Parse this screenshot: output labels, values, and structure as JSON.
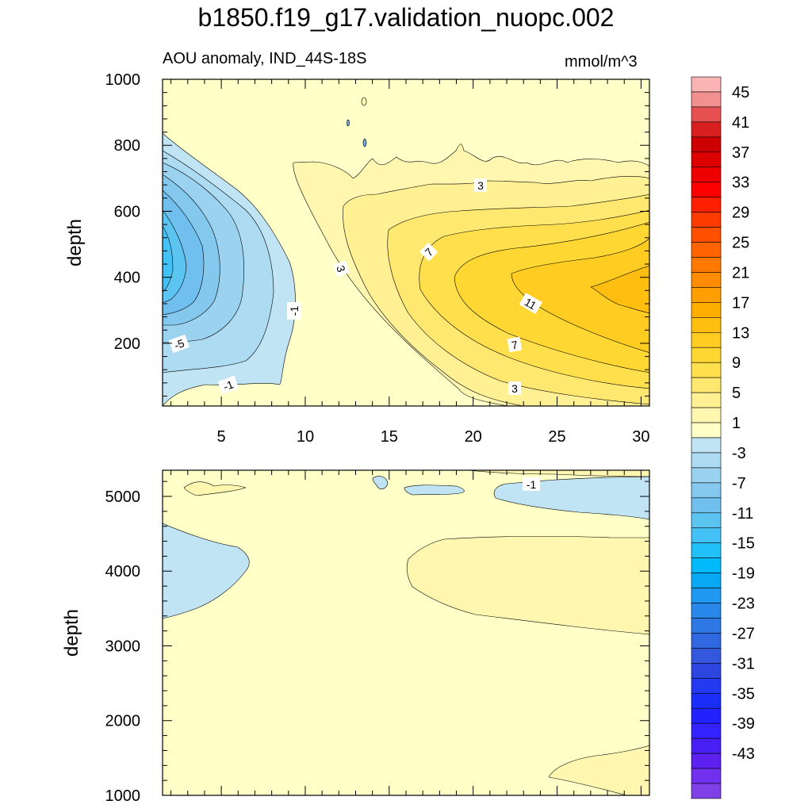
{
  "chart_data": {
    "title": "b1850.f19_g17.validation_nuopc.002",
    "panels": [
      {
        "type": "contour",
        "subtitle_left": "AOU anomaly, IND_44S-18S",
        "subtitle_right": "mmol/m^3",
        "ylabel": "depth",
        "xlim": [
          1.5,
          30.5
        ],
        "ylim": [
          1000,
          10
        ],
        "xticks": [
          "5",
          "10",
          "15",
          "20",
          "25",
          "30"
        ],
        "yticks": [
          "200",
          "400",
          "600",
          "800",
          "1000"
        ],
        "contour_labels": [
          "3",
          "7",
          "3",
          "-1",
          "11",
          "-5",
          "7",
          "-1",
          "3"
        ]
      },
      {
        "type": "contour",
        "ylabel": "depth",
        "xlim": [
          1.5,
          30.5
        ],
        "ylim": [
          5350,
          1000
        ],
        "yticks": [
          "1000",
          "2000",
          "3000",
          "4000",
          "5000"
        ],
        "contour_labels": [
          "-1"
        ]
      }
    ],
    "colorbar": {
      "labels": [
        "45",
        "41",
        "37",
        "33",
        "29",
        "25",
        "21",
        "17",
        "13",
        "9",
        "5",
        "1",
        "-3",
        "-7",
        "-11",
        "-15",
        "-19",
        "-23",
        "-27",
        "-31",
        "-35",
        "-39",
        "-43"
      ],
      "colors": [
        "#FBB4B4",
        "#F29090",
        "#E65050",
        "#D82020",
        "#CC0000",
        "#DD0000",
        "#EE0000",
        "#FF0000",
        "#FF2000",
        "#FF3C00",
        "#FF5000",
        "#FF6400",
        "#FF7800",
        "#FF8C00",
        "#FF9E00",
        "#FFAE00",
        "#FFBE10",
        "#FFCC22",
        "#FFD733",
        "#FFE04C",
        "#FFE870",
        "#FFF094",
        "#FFF6B0",
        "#FFFFC8",
        "#C0E4F4",
        "#ADDBF2",
        "#9AD2EF",
        "#85C8EE",
        "#70BFEE",
        "#5CC4F0",
        "#45C2F5",
        "#22C0F8",
        "#00B9FA",
        "#09A8F5",
        "#1E98F0",
        "#2A88EA",
        "#2E78E5",
        "#3068E2",
        "#3358DD",
        "#2E46E0",
        "#243AF0",
        "#1A2EFA",
        "#2222FF",
        "#3422FF",
        "#4820F5",
        "#5C20EF",
        "#7030EE",
        "#8040E8"
      ]
    }
  }
}
